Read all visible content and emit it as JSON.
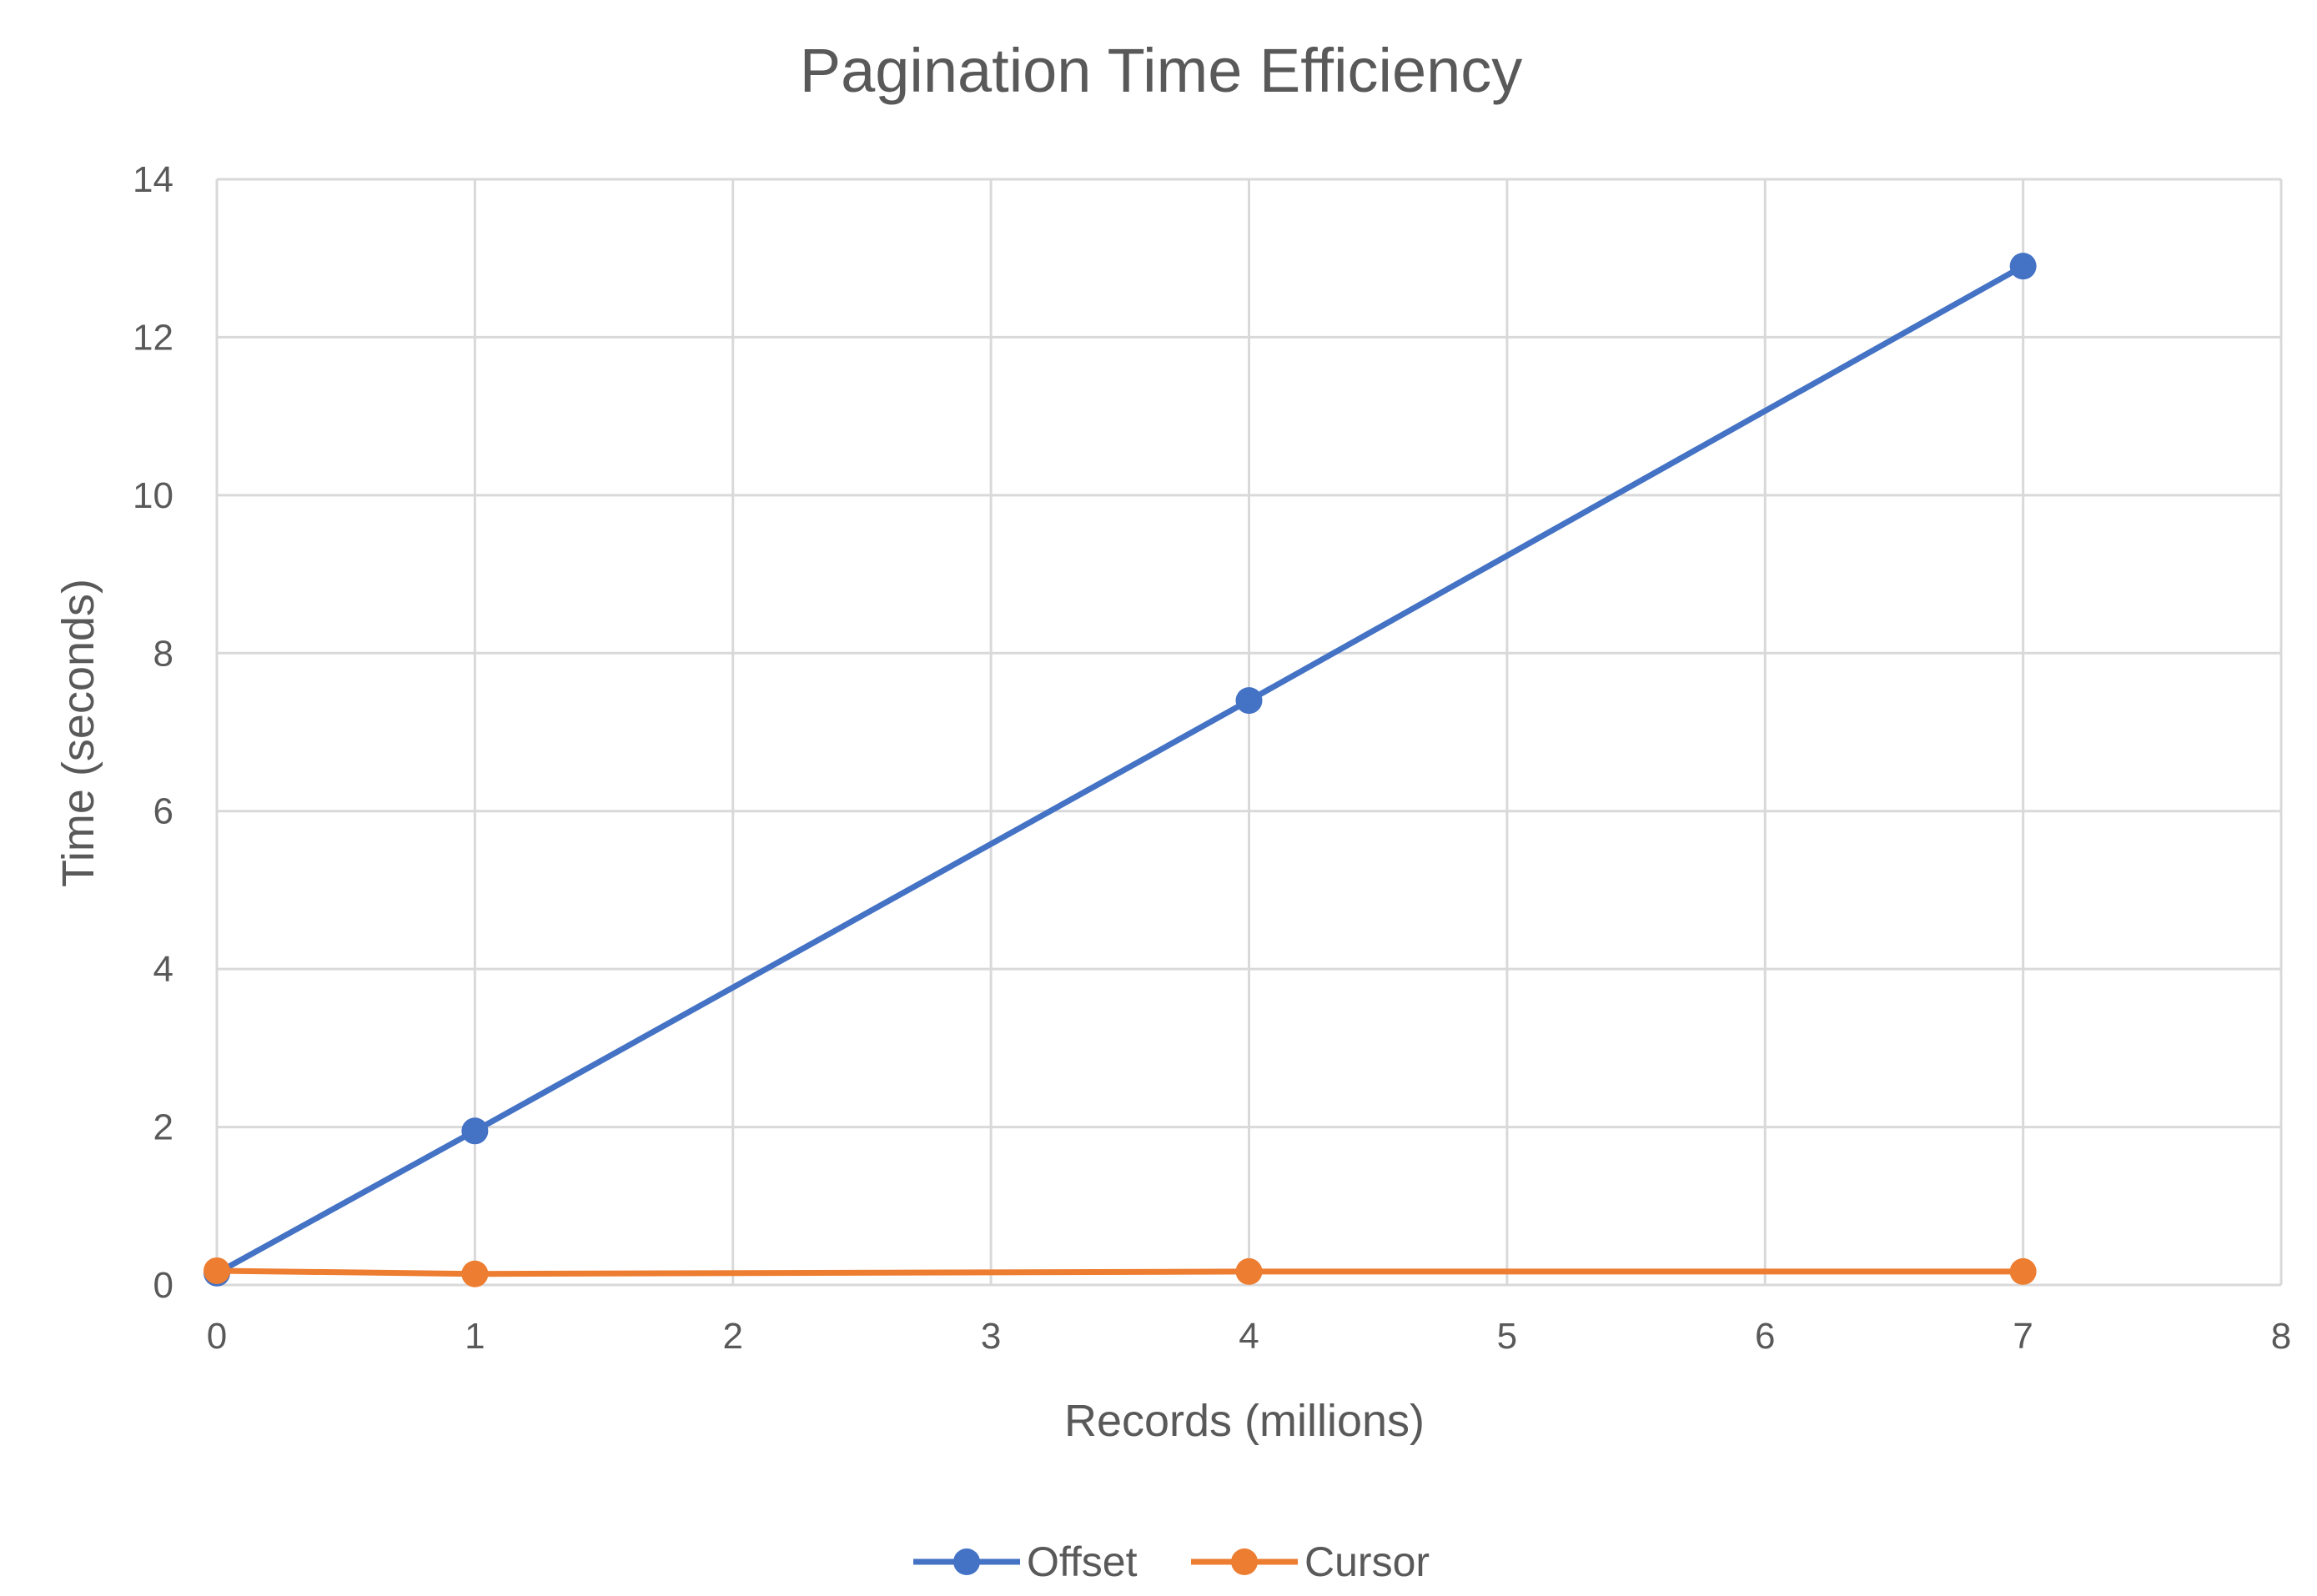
{
  "chart_data": {
    "type": "scatter",
    "title": "Pagination Time Efficiency",
    "xlabel": "Records (millions)",
    "ylabel": "Time (seconds)",
    "xlim": [
      0,
      8
    ],
    "ylim": [
      0,
      14
    ],
    "x_ticks": [
      "0",
      "1",
      "2",
      "3",
      "4",
      "5",
      "6",
      "7",
      "8"
    ],
    "y_ticks": [
      "0",
      "2",
      "4",
      "6",
      "8",
      "10",
      "12",
      "14"
    ],
    "grid": true,
    "legend_position": "bottom",
    "markers": true,
    "lines": true,
    "series": [
      {
        "name": "Offset",
        "color": "#4472C4",
        "x": [
          0,
          1,
          4,
          7
        ],
        "y": [
          0.15,
          1.95,
          7.4,
          12.9
        ]
      },
      {
        "name": "Cursor",
        "color": "#ED7D31",
        "x": [
          0,
          1,
          4,
          7
        ],
        "y": [
          0.18,
          0.14,
          0.17,
          0.17
        ]
      }
    ]
  }
}
